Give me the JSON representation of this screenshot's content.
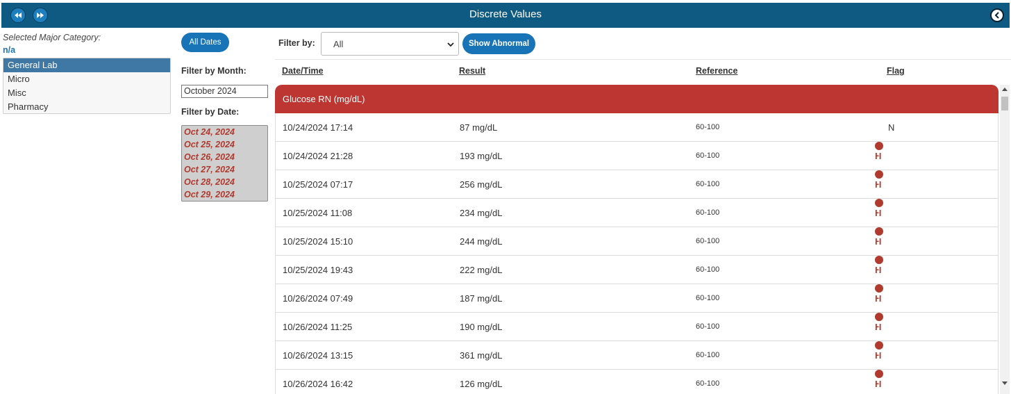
{
  "header": {
    "title": "Discrete Values",
    "prev_icon": "rewind-icon",
    "next_icon": "fast-forward-icon",
    "close_icon": "chevron-left-icon"
  },
  "category": {
    "label": "Selected Major Category:",
    "value": "n/a",
    "items": [
      "General Lab",
      "Micro",
      "Misc",
      "Pharmacy"
    ],
    "selected": "General Lab"
  },
  "filters": {
    "all_dates_label": "All Dates",
    "filter_by_label": "Filter by:",
    "filter_by_value": "All",
    "show_abnormal_label": "Show Abnormal",
    "month_label": "Filter by Month:",
    "month_value": "October 2024",
    "date_label": "Filter by Date:",
    "dates": [
      "Oct 24, 2024",
      "Oct 25, 2024",
      "Oct 26, 2024",
      "Oct 27, 2024",
      "Oct 28, 2024",
      "Oct 29, 2024"
    ]
  },
  "table": {
    "columns": [
      "Date/Time",
      "Result",
      "Reference",
      "Flag"
    ],
    "group": "Glucose RN (mg/dL)",
    "rows": [
      {
        "datetime": "10/24/2024 17:14",
        "result": "87 mg/dL",
        "reference": "60-100",
        "flag": "N"
      },
      {
        "datetime": "10/24/2024 21:28",
        "result": "193 mg/dL",
        "reference": "60-100",
        "flag": "H"
      },
      {
        "datetime": "10/25/2024 07:17",
        "result": "256 mg/dL",
        "reference": "60-100",
        "flag": "H"
      },
      {
        "datetime": "10/25/2024 11:08",
        "result": "234 mg/dL",
        "reference": "60-100",
        "flag": "H"
      },
      {
        "datetime": "10/25/2024 15:10",
        "result": "244 mg/dL",
        "reference": "60-100",
        "flag": "H"
      },
      {
        "datetime": "10/25/2024 19:43",
        "result": "222 mg/dL",
        "reference": "60-100",
        "flag": "H"
      },
      {
        "datetime": "10/26/2024 07:49",
        "result": "187 mg/dL",
        "reference": "60-100",
        "flag": "H"
      },
      {
        "datetime": "10/26/2024 11:25",
        "result": "190 mg/dL",
        "reference": "60-100",
        "flag": "H"
      },
      {
        "datetime": "10/26/2024 13:15",
        "result": "361 mg/dL",
        "reference": "60-100",
        "flag": "H"
      },
      {
        "datetime": "10/26/2024 16:42",
        "result": "126 mg/dL",
        "reference": "60-100",
        "flag": "H"
      }
    ]
  },
  "colors": {
    "header_bg": "#0e5a82",
    "button_blue": "#1874b6",
    "group_red": "#bd3631",
    "flag_red": "#b03a2e",
    "selected_bg": "#3f77a5"
  }
}
